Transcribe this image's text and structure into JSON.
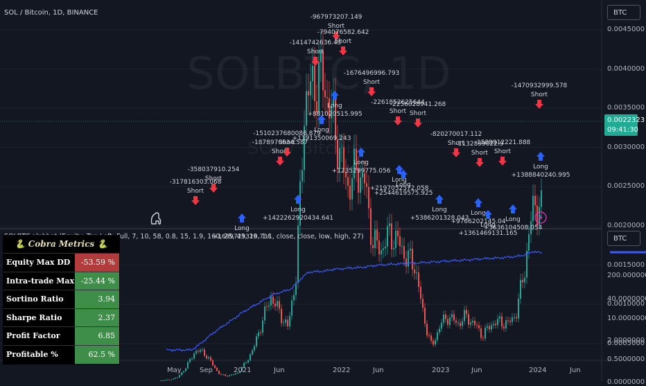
{
  "header": {
    "symbol_title": "SOL / Bitcoin, 1D, BINANCE",
    "watermark_symbol": "SOLBTC, 1D",
    "watermark_name": "SOL / Bitcoin"
  },
  "indicator_title": "SOLBTC alphbot (Equity, Top Left, Full, 7, 10, 58, 0.8, 15, 1.9, 160, 25, 43, 19, 1.1, close, close, low, high, 27)",
  "price_axis": {
    "unit_label": "BTC",
    "ticks": [
      "0.0045000",
      "0.0040000",
      "0.0035000",
      "0.0030000",
      "0.0025000",
      "0.0020000",
      "0.0015000",
      "0.0010000",
      "0.0005000",
      "0.0000000"
    ],
    "last_price": "0.0022323",
    "countdown": "09:41:30",
    "last_color": "#22ab94"
  },
  "equity_axis": {
    "unit_label": "BTC",
    "ticks": [
      "200.0000000",
      "40.0000000",
      "10.0000000",
      "2.0000000",
      "0.5000000"
    ]
  },
  "time_axis": [
    "May",
    "Sep",
    "2021",
    "Jun",
    "2022",
    "Jun",
    "2023",
    "Jun",
    "2024",
    "Jun"
  ],
  "metrics": {
    "title": "🐍 Cobra Metrics 🐍",
    "rows": [
      {
        "label": "Equity Max DD",
        "value": "-53.59 %",
        "status": "red"
      },
      {
        "label": "Intra-trade Max DD",
        "value": "-25.44 %",
        "status": "green"
      },
      {
        "label": "Sortino Ratio",
        "value": "3.94",
        "status": "green"
      },
      {
        "label": "Sharpe Ratio",
        "value": "2.37",
        "status": "green"
      },
      {
        "label": "Profit Factor",
        "value": "6.85",
        "status": "green"
      },
      {
        "label": "Profitable %",
        "value": "62.5 %",
        "status": "green"
      }
    ]
  },
  "colors": {
    "up": "#26a69a",
    "down": "#ef5350",
    "long_arrow": "#2962ff",
    "short_arrow": "#f23645",
    "equity_line": "#3d5afe"
  },
  "chart_data": [
    {
      "type": "candlestick",
      "title": "SOL / Bitcoin, 1D, BINANCE",
      "ylabel": "BTC",
      "ylim": [
        -0.0003,
        0.0047
      ],
      "x": [
        "2020-04",
        "2020-05",
        "2020-06",
        "2020-07",
        "2020-08",
        "2020-09",
        "2020-10",
        "2020-11",
        "2020-12",
        "2021-01",
        "2021-02",
        "2021-03",
        "2021-04",
        "2021-05",
        "2021-06",
        "2021-07",
        "2021-08",
        "2021-09",
        "2021-10",
        "2021-11",
        "2021-12",
        "2022-01",
        "2022-02",
        "2022-03",
        "2022-04",
        "2022-05",
        "2022-06",
        "2022-07",
        "2022-08",
        "2022-09",
        "2022-10",
        "2022-11",
        "2022-12",
        "2023-01",
        "2023-02",
        "2023-03",
        "2023-04",
        "2023-05",
        "2023-06",
        "2023-07",
        "2023-08",
        "2023-09",
        "2023-10",
        "2023-11",
        "2023-12",
        "2024-01"
      ],
      "values": [
        3e-05,
        4e-05,
        7e-05,
        0.0002,
        0.0004,
        0.0004,
        0.00025,
        0.0001,
        9e-05,
        0.00012,
        0.00025,
        0.00045,
        0.0008,
        0.0011,
        0.0009,
        0.0007,
        0.0014,
        0.0036,
        0.0038,
        0.0039,
        0.0035,
        0.003,
        0.0025,
        0.0027,
        0.0026,
        0.0018,
        0.0017,
        0.0019,
        0.0018,
        0.0016,
        0.0015,
        0.00085,
        0.00045,
        0.00075,
        0.00085,
        0.00075,
        0.00085,
        0.00075,
        0.0006,
        0.00075,
        0.00078,
        0.00075,
        0.0009,
        0.0015,
        0.0023,
        0.0022
      ],
      "last_price": 0.0022323,
      "annotations": [
        {
          "label": "Short",
          "value": "-317816303.068"
        },
        {
          "label": "Short",
          "value": "-358037910.254"
        },
        {
          "label": "Long",
          "value": "+1699729326.736"
        },
        {
          "label": "Short",
          "value": "-1878970634.587"
        },
        {
          "label": "Short",
          "value": "-1510237680086.879"
        },
        {
          "label": "Long",
          "value": "+1422262920434.641"
        },
        {
          "label": "Short",
          "value": "-1414742636.43"
        },
        {
          "label": "Short",
          "value": "-967973207.149"
        },
        {
          "label": "Short",
          "value": "-794076582.642"
        },
        {
          "label": "Long",
          "value": "+881020515.995"
        },
        {
          "label": "Long",
          "value": "+1191350069.243"
        },
        {
          "label": "Short",
          "value": "-1676496996.793"
        },
        {
          "label": "Short",
          "value": "-2261852625644"
        },
        {
          "label": "Short",
          "value": "-2256028941.268"
        },
        {
          "label": "Long",
          "value": "+1235299775.056"
        },
        {
          "label": "Long",
          "value": "+2197052572.058"
        },
        {
          "label": "Long",
          "value": "+2544619575.925"
        },
        {
          "label": "Short",
          "value": "-820270017.112"
        },
        {
          "label": "Short",
          "value": "-1132899022.9"
        },
        {
          "label": "Short",
          "value": "-1589912221.888"
        },
        {
          "label": "Long",
          "value": "+5386201328.043"
        },
        {
          "label": "Long",
          "value": "+9766202145.04"
        },
        {
          "label": "Long",
          "value": "+1361469131.165"
        },
        {
          "label": "Long",
          "value": "+3636104508.054"
        },
        {
          "label": "Short",
          "value": "-1470932999.578"
        },
        {
          "label": "Long",
          "value": "+1388840240.995"
        }
      ]
    },
    {
      "type": "line",
      "title": "",
      "ylabel": "BTC",
      "scale": "log",
      "ylim": [
        0.5,
        1300
      ],
      "x": [
        "2020-04",
        "2020-05",
        "2020-06",
        "2020-07",
        "2020-08",
        "2020-09",
        "2020-10",
        "2020-11",
        "2020-12",
        "2021-01",
        "2021-02",
        "2021-03",
        "2021-04",
        "2021-05",
        "2021-06",
        "2021-07",
        "2021-08",
        "2021-09",
        "2021-10",
        "2021-11",
        "2021-12",
        "2022-01",
        "2022-02",
        "2022-03",
        "2022-04",
        "2022-05",
        "2022-06",
        "2022-07",
        "2022-08",
        "2022-09",
        "2022-10",
        "2022-11",
        "2022-12",
        "2023-01",
        "2023-02",
        "2023-03",
        "2023-04",
        "2023-05",
        "2023-06",
        "2023-07",
        "2023-08",
        "2023-09",
        "2023-10",
        "2023-11",
        "2023-12",
        "2024-01"
      ],
      "values": [
        1.0,
        1.0,
        1.0,
        1.0,
        1.5,
        2.5,
        4,
        6,
        9,
        14,
        20,
        28,
        40,
        55,
        65,
        80,
        150,
        260,
        270,
        280,
        320,
        330,
        350,
        360,
        380,
        420,
        440,
        460,
        470,
        490,
        500,
        520,
        540,
        560,
        580,
        600,
        620,
        650,
        680,
        700,
        720,
        760,
        800,
        900,
        1150,
        1000
      ]
    }
  ]
}
